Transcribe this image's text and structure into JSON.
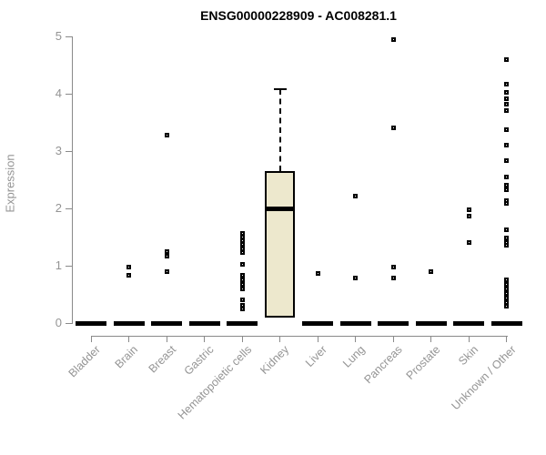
{
  "chart_data": {
    "type": "boxplot",
    "title": "ENSG00000228909 - AC008281.1",
    "ylabel": "Expression",
    "xlabel": "",
    "ylim": [
      0,
      5
    ],
    "yticks": [
      0,
      1,
      2,
      3,
      4,
      5
    ],
    "grid": false,
    "legend": "none",
    "colors": {
      "box_fill": "#EDE8CD",
      "box_border": "#000000",
      "median": "#000000",
      "outlier": "#000000",
      "axis": "#8a8a8a",
      "axis_text": "#949494",
      "title": "#000000",
      "background": "#ffffff"
    },
    "categories": [
      "Bladder",
      "Brain",
      "Breast",
      "Gastric",
      "Hematopoietic cells",
      "Kidney",
      "Liver",
      "Lung",
      "Pancreas",
      "Prostate",
      "Skin",
      "Unknown / Other"
    ],
    "boxes": [
      {
        "category": "Bladder",
        "q1": 0,
        "median": 0,
        "q3": 0,
        "whisker_low": 0,
        "whisker_high": 0,
        "outliers": []
      },
      {
        "category": "Brain",
        "q1": 0,
        "median": 0,
        "q3": 0,
        "whisker_low": 0,
        "whisker_high": 0,
        "outliers": [
          0.98,
          0.84
        ]
      },
      {
        "category": "Breast",
        "q1": 0,
        "median": 0,
        "q3": 0,
        "whisker_low": 0,
        "whisker_high": 0,
        "outliers": [
          3.27,
          1.24,
          1.16,
          0.89
        ]
      },
      {
        "category": "Gastric",
        "q1": 0,
        "median": 0,
        "q3": 0,
        "whisker_low": 0,
        "whisker_high": 0,
        "outliers": []
      },
      {
        "category": "Hematopoietic cells",
        "q1": 0,
        "median": 0,
        "q3": 0,
        "whisker_low": 0,
        "whisker_high": 0,
        "outliers": [
          1.56,
          1.5,
          1.44,
          1.37,
          1.3,
          1.23,
          1.03,
          0.84,
          0.76,
          0.68,
          0.6,
          0.4,
          0.31,
          0.24
        ]
      },
      {
        "category": "Kidney",
        "q1": 0.1,
        "median": 2.0,
        "q3": 2.65,
        "whisker_low": 0.1,
        "whisker_high": 4.08,
        "outliers": []
      },
      {
        "category": "Liver",
        "q1": 0,
        "median": 0,
        "q3": 0,
        "whisker_low": 0,
        "whisker_high": 0,
        "outliers": [
          0.87
        ]
      },
      {
        "category": "Lung",
        "q1": 0,
        "median": 0,
        "q3": 0,
        "whisker_low": 0,
        "whisker_high": 0,
        "outliers": [
          2.21,
          0.78
        ]
      },
      {
        "category": "Pancreas",
        "q1": 0,
        "median": 0,
        "q3": 0,
        "whisker_low": 0,
        "whisker_high": 0,
        "outliers": [
          4.95,
          3.4,
          0.98,
          0.78
        ]
      },
      {
        "category": "Prostate",
        "q1": 0,
        "median": 0,
        "q3": 0,
        "whisker_low": 0,
        "whisker_high": 0,
        "outliers": [
          0.89
        ]
      },
      {
        "category": "Skin",
        "q1": 0,
        "median": 0,
        "q3": 0,
        "whisker_low": 0,
        "whisker_high": 0,
        "outliers": [
          1.98,
          1.86,
          1.41
        ]
      },
      {
        "category": "Unknown / Other",
        "q1": 0,
        "median": 0,
        "q3": 0,
        "whisker_low": 0,
        "whisker_high": 0,
        "outliers": [
          4.6,
          4.16,
          4.03,
          3.92,
          3.81,
          3.7,
          3.38,
          3.1,
          2.83,
          2.54,
          2.41,
          2.33,
          2.14,
          2.08,
          1.62,
          1.48,
          1.41,
          1.35,
          0.76,
          0.67,
          0.59,
          0.51,
          0.43,
          0.35,
          0.29
        ]
      }
    ]
  }
}
